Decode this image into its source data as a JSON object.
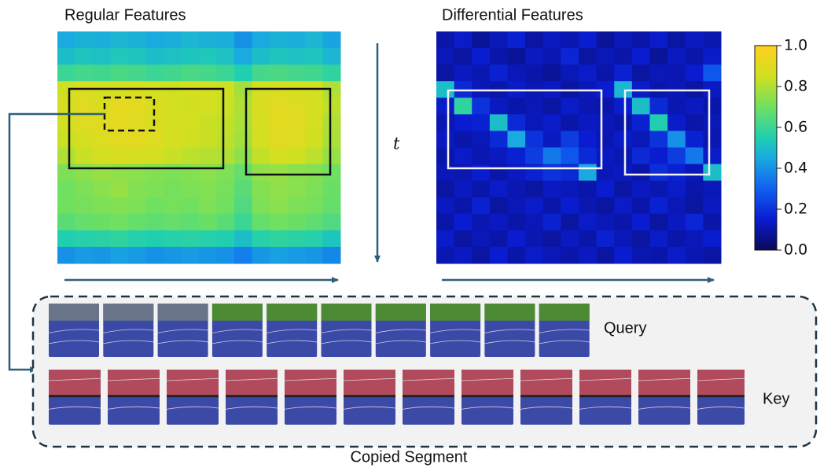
{
  "figure": {
    "panels": [
      {
        "title": "Regular Features",
        "cells": [
          [
            0.45,
            0.47,
            0.46,
            0.48,
            0.47,
            0.45,
            0.46,
            0.48,
            0.47,
            0.46,
            0.4,
            0.45,
            0.47,
            0.46,
            0.48,
            0.44
          ],
          [
            0.5,
            0.52,
            0.51,
            0.53,
            0.52,
            0.5,
            0.51,
            0.52,
            0.53,
            0.51,
            0.45,
            0.5,
            0.52,
            0.51,
            0.52,
            0.48
          ],
          [
            0.6,
            0.62,
            0.61,
            0.63,
            0.62,
            0.6,
            0.61,
            0.63,
            0.62,
            0.6,
            0.55,
            0.62,
            0.63,
            0.62,
            0.61,
            0.58
          ],
          [
            0.85,
            0.88,
            0.86,
            0.87,
            0.88,
            0.86,
            0.85,
            0.87,
            0.86,
            0.85,
            0.78,
            0.86,
            0.88,
            0.87,
            0.86,
            0.8
          ],
          [
            0.86,
            0.9,
            0.88,
            0.92,
            0.91,
            0.88,
            0.86,
            0.85,
            0.86,
            0.84,
            0.8,
            0.88,
            0.9,
            0.89,
            0.87,
            0.82
          ],
          [
            0.86,
            0.89,
            0.9,
            0.91,
            0.9,
            0.88,
            0.87,
            0.86,
            0.84,
            0.83,
            0.79,
            0.87,
            0.91,
            0.9,
            0.86,
            0.8
          ],
          [
            0.84,
            0.87,
            0.89,
            0.9,
            0.91,
            0.89,
            0.86,
            0.85,
            0.84,
            0.82,
            0.78,
            0.86,
            0.9,
            0.89,
            0.85,
            0.79
          ],
          [
            0.8,
            0.84,
            0.86,
            0.88,
            0.87,
            0.86,
            0.84,
            0.82,
            0.81,
            0.8,
            0.75,
            0.83,
            0.86,
            0.85,
            0.82,
            0.76
          ],
          [
            0.72,
            0.74,
            0.76,
            0.75,
            0.74,
            0.73,
            0.72,
            0.73,
            0.74,
            0.72,
            0.68,
            0.75,
            0.76,
            0.74,
            0.73,
            0.7
          ],
          [
            0.7,
            0.72,
            0.74,
            0.76,
            0.73,
            0.72,
            0.71,
            0.72,
            0.73,
            0.71,
            0.66,
            0.73,
            0.75,
            0.74,
            0.72,
            0.69
          ],
          [
            0.7,
            0.71,
            0.72,
            0.73,
            0.72,
            0.7,
            0.71,
            0.7,
            0.72,
            0.7,
            0.64,
            0.72,
            0.74,
            0.72,
            0.71,
            0.68
          ],
          [
            0.66,
            0.68,
            0.69,
            0.7,
            0.68,
            0.67,
            0.68,
            0.67,
            0.69,
            0.66,
            0.6,
            0.68,
            0.7,
            0.69,
            0.67,
            0.64
          ],
          [
            0.55,
            0.56,
            0.57,
            0.58,
            0.56,
            0.55,
            0.56,
            0.57,
            0.56,
            0.55,
            0.5,
            0.56,
            0.58,
            0.57,
            0.56,
            0.52
          ],
          [
            0.4,
            0.42,
            0.41,
            0.43,
            0.42,
            0.4,
            0.41,
            0.42,
            0.41,
            0.4,
            0.36,
            0.41,
            0.43,
            0.42,
            0.41,
            0.38
          ]
        ]
      },
      {
        "title": "Differential Features",
        "cells": [
          [
            0.1,
            0.14,
            0.08,
            0.12,
            0.16,
            0.09,
            0.13,
            0.11,
            0.15,
            0.08,
            0.12,
            0.1,
            0.14,
            0.09,
            0.13,
            0.11
          ],
          [
            0.12,
            0.09,
            0.15,
            0.1,
            0.08,
            0.13,
            0.11,
            0.17,
            0.09,
            0.12,
            0.1,
            0.15,
            0.08,
            0.13,
            0.1,
            0.14
          ],
          [
            0.09,
            0.13,
            0.11,
            0.16,
            0.12,
            0.1,
            0.08,
            0.12,
            0.14,
            0.1,
            0.16,
            0.09,
            0.12,
            0.11,
            0.15,
            0.28
          ],
          [
            0.5,
            0.18,
            0.12,
            0.1,
            0.14,
            0.11,
            0.13,
            0.09,
            0.12,
            0.15,
            0.48,
            0.14,
            0.1,
            0.12,
            0.09,
            0.13
          ],
          [
            0.14,
            0.58,
            0.2,
            0.13,
            0.1,
            0.12,
            0.09,
            0.14,
            0.11,
            0.1,
            0.15,
            0.5,
            0.18,
            0.11,
            0.13,
            0.1
          ],
          [
            0.11,
            0.15,
            0.16,
            0.5,
            0.18,
            0.12,
            0.14,
            0.1,
            0.13,
            0.12,
            0.1,
            0.16,
            0.55,
            0.14,
            0.1,
            0.12
          ],
          [
            0.13,
            0.1,
            0.12,
            0.18,
            0.45,
            0.2,
            0.13,
            0.22,
            0.15,
            0.11,
            0.14,
            0.12,
            0.2,
            0.4,
            0.16,
            0.11
          ],
          [
            0.1,
            0.14,
            0.11,
            0.13,
            0.16,
            0.22,
            0.35,
            0.28,
            0.18,
            0.13,
            0.11,
            0.18,
            0.15,
            0.22,
            0.35,
            0.14
          ],
          [
            0.12,
            0.11,
            0.15,
            0.1,
            0.13,
            0.16,
            0.2,
            0.18,
            0.45,
            0.12,
            0.13,
            0.1,
            0.19,
            0.16,
            0.12,
            0.5
          ],
          [
            0.09,
            0.13,
            0.1,
            0.14,
            0.11,
            0.09,
            0.13,
            0.12,
            0.1,
            0.15,
            0.09,
            0.13,
            0.11,
            0.14,
            0.1,
            0.12
          ],
          [
            0.13,
            0.1,
            0.16,
            0.09,
            0.12,
            0.14,
            0.1,
            0.15,
            0.11,
            0.09,
            0.14,
            0.1,
            0.16,
            0.12,
            0.09,
            0.13
          ],
          [
            0.1,
            0.15,
            0.11,
            0.13,
            0.1,
            0.12,
            0.16,
            0.09,
            0.14,
            0.12,
            0.1,
            0.15,
            0.09,
            0.13,
            0.17,
            0.1
          ],
          [
            0.14,
            0.09,
            0.12,
            0.1,
            0.15,
            0.11,
            0.09,
            0.13,
            0.1,
            0.16,
            0.12,
            0.09,
            0.14,
            0.1,
            0.12,
            0.15
          ],
          [
            0.11,
            0.13,
            0.09,
            0.15,
            0.1,
            0.14,
            0.12,
            0.1,
            0.13,
            0.09,
            0.15,
            0.11,
            0.1,
            0.14,
            0.11,
            0.09
          ]
        ]
      }
    ],
    "time_axis_label": "t",
    "colorbar": {
      "lim": [
        0,
        1
      ],
      "ticks": [
        {
          "value": 0,
          "label": "0.0"
        },
        {
          "value": 0.2,
          "label": "0.2"
        },
        {
          "value": 0.4,
          "label": "0.4"
        },
        {
          "value": 0.6,
          "label": "0.6"
        },
        {
          "value": 0.8,
          "label": "0.8"
        },
        {
          "value": 1,
          "label": "1.0"
        }
      ]
    },
    "rows": [
      {
        "label": "Query"
      },
      {
        "label": "Key"
      }
    ],
    "caption": "Copied Segment"
  }
}
